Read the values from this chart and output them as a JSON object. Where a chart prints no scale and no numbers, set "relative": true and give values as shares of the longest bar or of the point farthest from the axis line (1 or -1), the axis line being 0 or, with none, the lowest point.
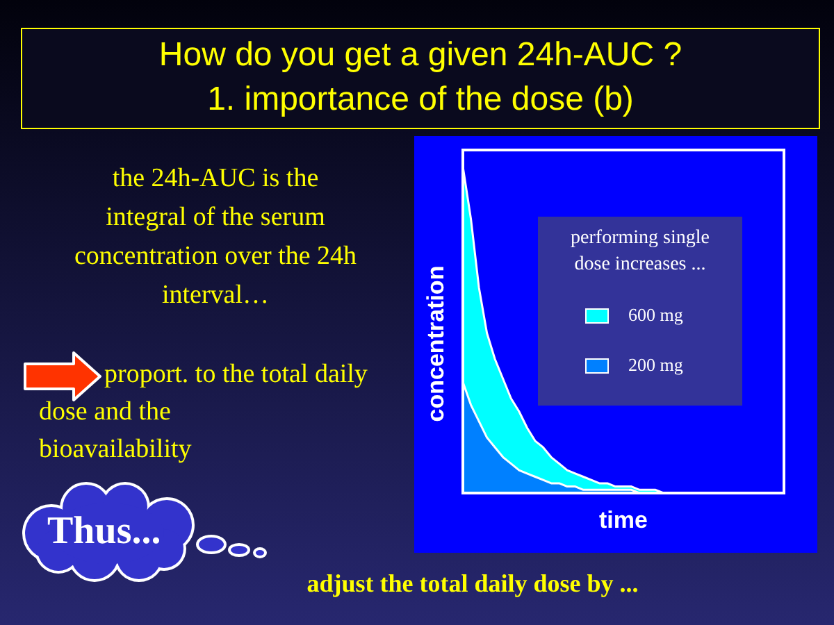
{
  "chart_data": {
    "type": "area",
    "title": "How do you get a given 24h-AUC ?",
    "subtitle": "1. importance of the dose (b)",
    "xlabel": "time",
    "ylabel": "concentration",
    "legend_title": "performing single dose increases ...",
    "annotations": [
      "the 24h-AUC is the\nintegral of the serum\nconcentration over the 24h\ninterval…",
      "proport. to the total daily\ndose and the\nbioavailability",
      "Thus...",
      "adjust the total daily dose by ..."
    ],
    "categories": [
      null,
      null,
      null,
      null,
      null,
      null,
      null,
      null,
      null,
      null,
      null,
      null,
      null,
      null,
      null,
      null,
      null,
      null,
      null,
      null,
      null,
      null,
      null,
      null,
      null,
      null,
      null,
      null,
      null,
      null,
      null,
      null,
      null,
      null,
      null,
      null,
      null,
      null,
      null,
      null,
      null
    ],
    "relative": true,
    "series": [
      {
        "name": "600 mg",
        "color": "#00ffff",
        "values": [
          1,
          0.84,
          0.63,
          0.49,
          0.41,
          0.35,
          0.29,
          0.25,
          0.2,
          0.16,
          0.14,
          0.11,
          0.09,
          0.07,
          0.06,
          0.05,
          0.04,
          0.03,
          0.03,
          0.02,
          0.02,
          0.02,
          0.01,
          0.01,
          0.01,
          0,
          null,
          null,
          null,
          null,
          null,
          null,
          null,
          null,
          null,
          null,
          null,
          null,
          null,
          null,
          null
        ]
      },
      {
        "name": "200 mg",
        "color": "#0080ff",
        "values": [
          0.34,
          0.27,
          0.22,
          0.17,
          0.14,
          0.11,
          0.09,
          0.07,
          0.06,
          0.05,
          0.04,
          0.03,
          0.03,
          0.02,
          0.02,
          0.01,
          0.01,
          0.01,
          0.01,
          0.01,
          0.01,
          0.01,
          0,
          null,
          null,
          null,
          null,
          null,
          null,
          null,
          null,
          null,
          null,
          null,
          null,
          null,
          null,
          null,
          null,
          null,
          null
        ]
      }
    ],
    "legend": "right"
  }
}
